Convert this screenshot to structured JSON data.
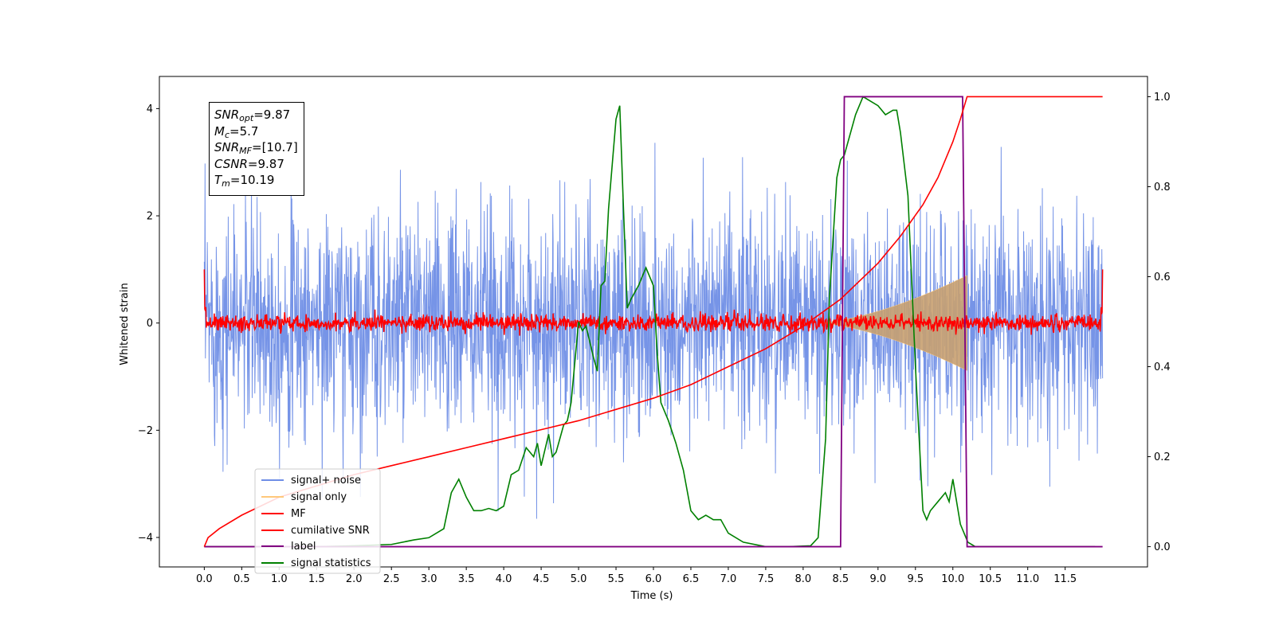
{
  "chart_data": {
    "type": "line",
    "xlabel": "Time (s)",
    "ylabel": "Whitened strain",
    "xlim": [
      -0.6,
      12.6
    ],
    "ylim": [
      -4.55,
      4.6
    ],
    "y2lim": [
      -0.045,
      1.045
    ],
    "xticks": [
      0.0,
      0.5,
      1.0,
      1.5,
      2.0,
      2.5,
      3.0,
      3.5,
      4.0,
      4.5,
      5.0,
      5.5,
      6.0,
      6.5,
      7.0,
      7.5,
      8.0,
      8.5,
      9.0,
      9.5,
      10.0,
      10.5,
      11.0,
      11.5
    ],
    "xtick_labels": [
      "0.0",
      "0.5",
      "1.0",
      "1.5",
      "2.0",
      "2.5",
      "3.0",
      "3.5",
      "4.0",
      "4.5",
      "5.0",
      "5.5",
      "6.0",
      "6.5",
      "7.0",
      "7.5",
      "8.0",
      "8.5",
      "9.0",
      "9.5",
      "10.0",
      "10.5",
      "11.0",
      "11.5"
    ],
    "yticks": [
      -4,
      -2,
      0,
      2,
      4
    ],
    "ytick_labels": [
      "−4",
      "−2",
      "0",
      "2",
      "4"
    ],
    "y2ticks": [
      0.0,
      0.2,
      0.4,
      0.6,
      0.8,
      1.0
    ],
    "y2tick_labels": [
      "0.0",
      "0.2",
      "0.4",
      "0.6",
      "0.8",
      "1.0"
    ],
    "legend_location": "lower-left",
    "colors": {
      "signal_noise": "#6f8ee6",
      "signal_only": "#ffc87a",
      "mf": "#ff0000",
      "cumulative_snr": "#ff0000",
      "label": "#800080",
      "signal_statistics": "#008000"
    },
    "series": [
      {
        "name": "signal+ noise",
        "axis": "left",
        "style": "noise band",
        "x_range": [
          0.0,
          12.0
        ],
        "typical_range": [
          -1.9,
          1.9
        ],
        "extremes": [
          -4.1,
          4.15
        ]
      },
      {
        "name": "signal only",
        "axis": "left",
        "style": "chirp envelope",
        "x_range": [
          8.2,
          10.19
        ],
        "amplitude_at_end": 0.95
      },
      {
        "name": "MF",
        "axis": "left",
        "style": "noise band",
        "x_range": [
          0.0,
          12.0
        ],
        "typical_range": [
          -0.15,
          0.15
        ],
        "edge_value": 1.0
      },
      {
        "name": "cumilative SNR",
        "axis": "right",
        "x": [
          0.0,
          0.05,
          0.2,
          0.5,
          1.0,
          1.5,
          2.0,
          2.5,
          3.0,
          3.5,
          4.0,
          4.5,
          5.0,
          5.5,
          6.0,
          6.5,
          7.0,
          7.5,
          8.0,
          8.5,
          9.0,
          9.3,
          9.6,
          9.8,
          10.0,
          10.1,
          10.19,
          12.0
        ],
        "y": [
          0.0,
          0.02,
          0.04,
          0.07,
          0.11,
          0.135,
          0.16,
          0.18,
          0.2,
          0.22,
          0.24,
          0.26,
          0.28,
          0.305,
          0.33,
          0.36,
          0.4,
          0.44,
          0.49,
          0.55,
          0.63,
          0.69,
          0.76,
          0.82,
          0.9,
          0.95,
          1.0,
          1.0
        ]
      },
      {
        "name": "label",
        "axis": "right",
        "x": [
          0.0,
          8.5,
          8.55,
          10.13,
          10.19,
          12.0
        ],
        "y": [
          0.0,
          0.0,
          1.0,
          1.0,
          0.0,
          0.0
        ]
      },
      {
        "name": "signal statistics",
        "axis": "right",
        "x": [
          0.0,
          0.5,
          1.0,
          1.5,
          2.0,
          2.5,
          2.8,
          3.0,
          3.2,
          3.3,
          3.4,
          3.5,
          3.6,
          3.7,
          3.8,
          3.9,
          4.0,
          4.1,
          4.2,
          4.3,
          4.35,
          4.4,
          4.45,
          4.5,
          4.6,
          4.65,
          4.7,
          4.8,
          4.85,
          4.9,
          5.0,
          5.05,
          5.1,
          5.2,
          5.25,
          5.3,
          5.35,
          5.4,
          5.45,
          5.5,
          5.55,
          5.6,
          5.65,
          5.7,
          5.8,
          5.9,
          6.0,
          6.05,
          6.1,
          6.2,
          6.3,
          6.4,
          6.5,
          6.6,
          6.7,
          6.8,
          6.9,
          7.0,
          7.2,
          7.5,
          7.8,
          8.1,
          8.2,
          8.3,
          8.35,
          8.45,
          8.5,
          8.55,
          8.6,
          8.7,
          8.8,
          8.9,
          9.0,
          9.1,
          9.2,
          9.25,
          9.3,
          9.4,
          9.5,
          9.6,
          9.65,
          9.7,
          9.8,
          9.9,
          9.95,
          10.0,
          10.1,
          10.2,
          10.3,
          10.5,
          11.0,
          11.5,
          11.9
        ],
        "y": [
          0.0,
          0.0,
          0.0,
          0.0,
          0.002,
          0.005,
          0.015,
          0.02,
          0.04,
          0.12,
          0.15,
          0.11,
          0.08,
          0.08,
          0.085,
          0.08,
          0.09,
          0.16,
          0.17,
          0.22,
          0.21,
          0.2,
          0.23,
          0.18,
          0.25,
          0.2,
          0.21,
          0.27,
          0.28,
          0.32,
          0.5,
          0.48,
          0.49,
          0.42,
          0.39,
          0.58,
          0.59,
          0.75,
          0.85,
          0.95,
          0.98,
          0.75,
          0.53,
          0.55,
          0.58,
          0.62,
          0.58,
          0.43,
          0.32,
          0.28,
          0.23,
          0.17,
          0.08,
          0.06,
          0.07,
          0.06,
          0.06,
          0.03,
          0.01,
          0.0,
          0.0,
          0.002,
          0.02,
          0.24,
          0.55,
          0.82,
          0.86,
          0.87,
          0.9,
          0.96,
          1.0,
          0.99,
          0.98,
          0.96,
          0.97,
          0.97,
          0.92,
          0.78,
          0.4,
          0.08,
          0.06,
          0.08,
          0.1,
          0.12,
          0.1,
          0.15,
          0.05,
          0.01,
          0.0,
          0.0,
          0.0,
          0.0,
          0.0
        ]
      }
    ],
    "annotation": {
      "snr_opt_sym": "SNR",
      "snr_opt_sub": "opt",
      "snr_opt_val": "=9.87",
      "mc_sym": "M",
      "mc_sub": "c",
      "mc_val": "=5.7",
      "snr_mf_sym": "SNR",
      "snr_mf_sub": "MF",
      "snr_mf_val": "=[10.7]",
      "csnr_sym": "CSNR",
      "csnr_val": "=9.87",
      "tm_sym": "T",
      "tm_sub": "m",
      "tm_val": "=10.19"
    }
  }
}
